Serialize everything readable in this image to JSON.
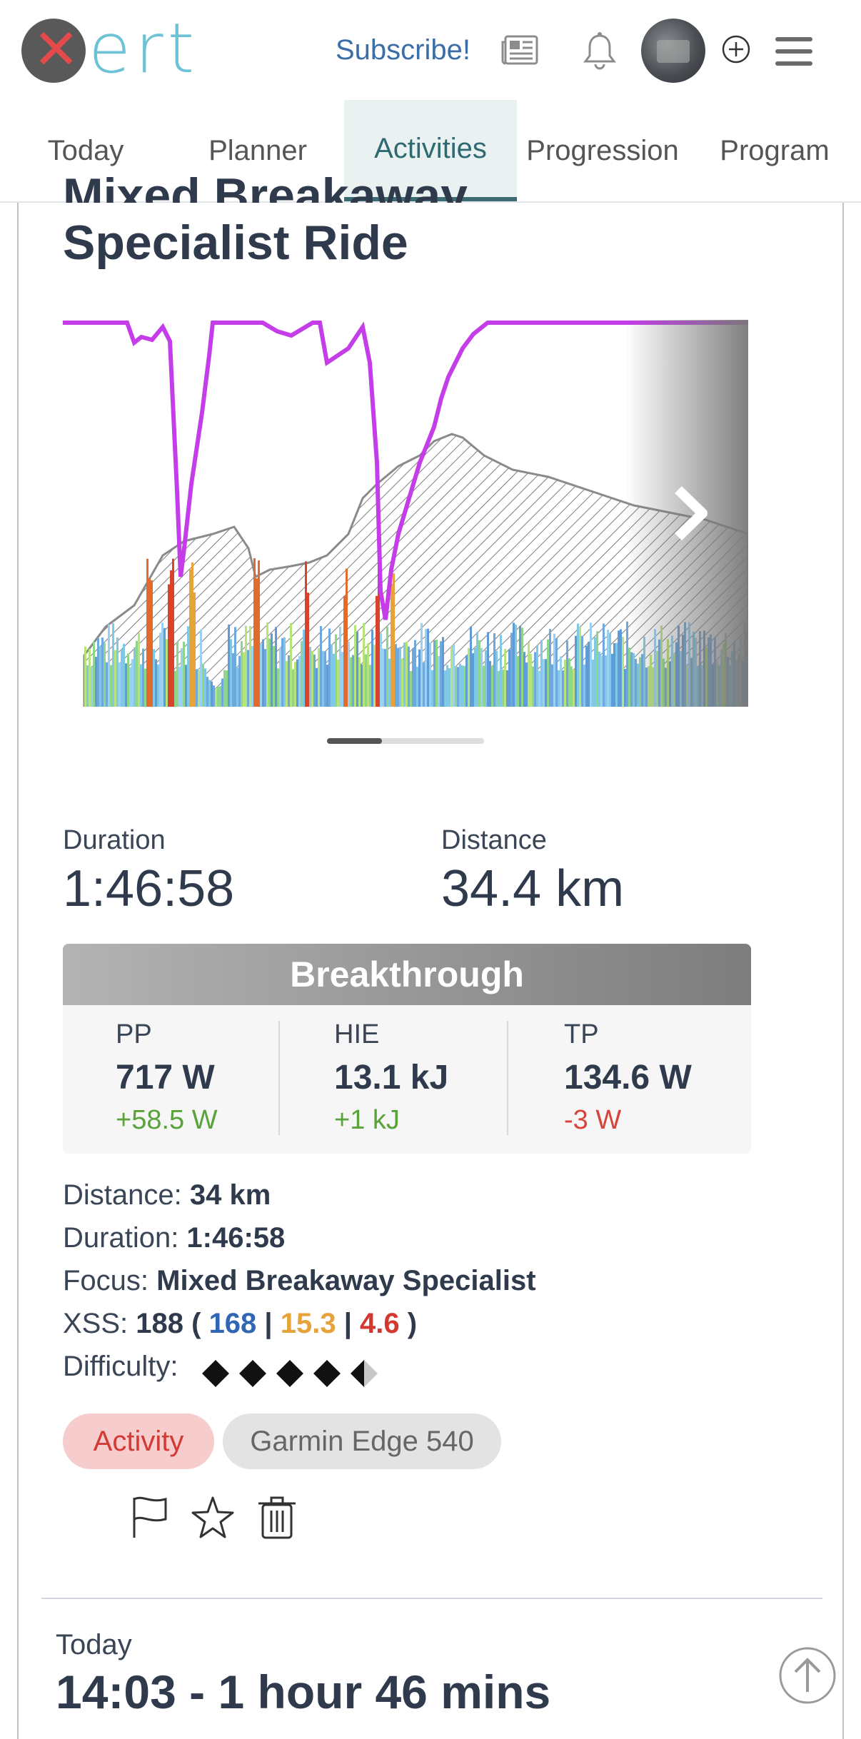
{
  "header": {
    "logo_text": "ert",
    "logo_mark": "✕",
    "subscribe_label": "Subscribe!"
  },
  "tabs": [
    {
      "label": "Today"
    },
    {
      "label": "Planner"
    },
    {
      "label": "Activities",
      "active": true
    },
    {
      "label": "Progression"
    },
    {
      "label": "Program"
    }
  ],
  "activity": {
    "title_line1": "Mixed Breakaway",
    "title_line2": "Specialist Ride",
    "carousel": {
      "slide_progress": 0.35
    },
    "duration_label": "Duration",
    "duration_value": "1:46:58",
    "distance_label": "Distance",
    "distance_value": "34.4 km",
    "breakthrough_label": "Breakthrough",
    "breakthrough": [
      {
        "label": "PP",
        "value": "717 W",
        "delta": "+58.5 W",
        "delta_color": "#5aa33a"
      },
      {
        "label": "HIE",
        "value": "13.1 kJ",
        "delta": "+1 kJ",
        "delta_color": "#5aa33a"
      },
      {
        "label": "TP",
        "value": "134.6 W",
        "delta": "-3 W",
        "delta_color": "#d9443a"
      }
    ],
    "details": {
      "distance_label": "Distance: ",
      "distance_value": "34 km",
      "duration_label": "Duration: ",
      "duration_value": "1:46:58",
      "focus_label": "Focus: ",
      "focus_value": "Mixed Breakaway Specialist",
      "xss_label": "XSS: ",
      "xss_total": "188",
      "xss_open": " ( ",
      "xss_low": "168",
      "xss_sep1": " | ",
      "xss_high": "15.3",
      "xss_sep2": " | ",
      "xss_peak": "4.6",
      "xss_close": " )",
      "difficulty_label": "Difficulty: ",
      "difficulty_rating": 4.5
    },
    "tags": [
      {
        "label": "Activity"
      },
      {
        "label": "Garmin Edge 540"
      }
    ],
    "actions": [
      {
        "icon": "flag-icon"
      },
      {
        "icon": "star-icon"
      },
      {
        "icon": "trash-icon"
      }
    ]
  },
  "next_entry": {
    "day": "Today",
    "time_range": "14:03 - 1 hour 46 mins"
  },
  "colors": {
    "accent_teal": "#3d6b73",
    "link_blue": "#3b6ea8",
    "power_line": "#c43de8",
    "xss_low": "#2f66b5",
    "xss_high": "#e8a23a",
    "xss_peak": "#d5372e"
  }
}
